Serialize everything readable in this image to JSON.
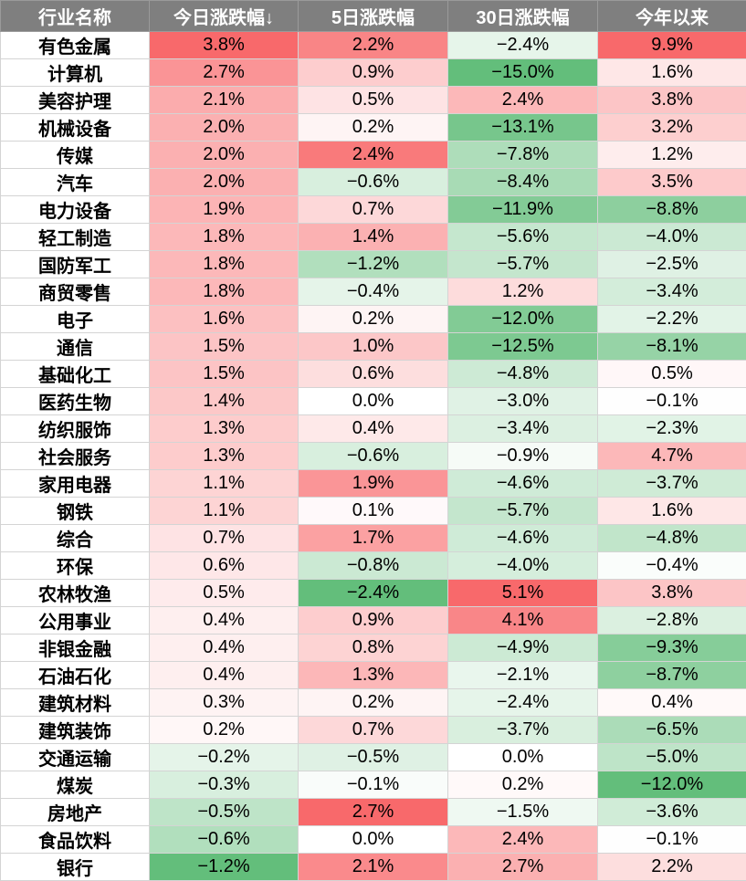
{
  "table": {
    "headers": [
      "行业名称",
      "今日涨跌幅↓",
      "5日涨跌幅",
      "30日涨跌幅",
      "今年以来"
    ],
    "rows": [
      [
        "有色金属",
        "3.8%",
        "2.2%",
        "−2.4%",
        "9.9%"
      ],
      [
        "计算机",
        "2.7%",
        "0.9%",
        "−15.0%",
        "1.6%"
      ],
      [
        "美容护理",
        "2.1%",
        "0.5%",
        "2.4%",
        "3.8%"
      ],
      [
        "机械设备",
        "2.0%",
        "0.2%",
        "−13.1%",
        "3.2%"
      ],
      [
        "传媒",
        "2.0%",
        "2.4%",
        "−7.8%",
        "1.2%"
      ],
      [
        "汽车",
        "2.0%",
        "−0.6%",
        "−8.4%",
        "3.5%"
      ],
      [
        "电力设备",
        "1.9%",
        "0.7%",
        "−11.9%",
        "−8.8%"
      ],
      [
        "轻工制造",
        "1.8%",
        "1.4%",
        "−5.6%",
        "−4.0%"
      ],
      [
        "国防军工",
        "1.8%",
        "−1.2%",
        "−5.7%",
        "−2.5%"
      ],
      [
        "商贸零售",
        "1.8%",
        "−0.4%",
        "1.2%",
        "−3.4%"
      ],
      [
        "电子",
        "1.6%",
        "0.2%",
        "−12.0%",
        "−2.2%"
      ],
      [
        "通信",
        "1.5%",
        "1.0%",
        "−12.5%",
        "−8.1%"
      ],
      [
        "基础化工",
        "1.5%",
        "0.6%",
        "−4.8%",
        "0.5%"
      ],
      [
        "医药生物",
        "1.4%",
        "0.0%",
        "−3.0%",
        "−0.1%"
      ],
      [
        "纺织服饰",
        "1.3%",
        "0.4%",
        "−3.4%",
        "−2.3%"
      ],
      [
        "社会服务",
        "1.3%",
        "−0.6%",
        "−0.9%",
        "4.7%"
      ],
      [
        "家用电器",
        "1.1%",
        "1.9%",
        "−4.6%",
        "−3.7%"
      ],
      [
        "钢铁",
        "1.1%",
        "0.1%",
        "−5.7%",
        "1.6%"
      ],
      [
        "综合",
        "0.7%",
        "1.7%",
        "−4.6%",
        "−4.8%"
      ],
      [
        "环保",
        "0.6%",
        "−0.8%",
        "−4.0%",
        "−0.4%"
      ],
      [
        "农林牧渔",
        "0.5%",
        "−2.4%",
        "5.1%",
        "3.8%"
      ],
      [
        "公用事业",
        "0.4%",
        "0.9%",
        "4.1%",
        "−2.8%"
      ],
      [
        "非银金融",
        "0.4%",
        "0.8%",
        "−4.9%",
        "−9.3%"
      ],
      [
        "石油石化",
        "0.4%",
        "1.3%",
        "−2.1%",
        "−8.7%"
      ],
      [
        "建筑材料",
        "0.3%",
        "0.2%",
        "−2.4%",
        "0.4%"
      ],
      [
        "建筑装饰",
        "0.2%",
        "0.7%",
        "−3.7%",
        "−6.5%"
      ],
      [
        "交通运输",
        "−0.2%",
        "−0.5%",
        "0.0%",
        "−5.0%"
      ],
      [
        "煤炭",
        "−0.3%",
        "−0.1%",
        "0.2%",
        "−12.0%"
      ],
      [
        "房地产",
        "−0.5%",
        "2.7%",
        "−1.5%",
        "−3.6%"
      ],
      [
        "食品饮料",
        "−0.6%",
        "0.0%",
        "2.4%",
        "−0.1%"
      ],
      [
        "银行",
        "−1.2%",
        "2.1%",
        "2.7%",
        "2.2%"
      ]
    ],
    "column_value_range": [
      {
        "min": -1.2,
        "max": 3.8
      },
      {
        "min": -2.4,
        "max": 2.7
      },
      {
        "min": -15.0,
        "max": 5.1
      },
      {
        "min": -12.0,
        "max": 9.9
      }
    ],
    "colors": {
      "header_bg": "#7f7f7f",
      "header_text": "#ffffff",
      "positive_max": "#f8696b",
      "negative_max": "#63be7b",
      "neutral": "#ffffff",
      "border": "#d4d4d4"
    }
  }
}
